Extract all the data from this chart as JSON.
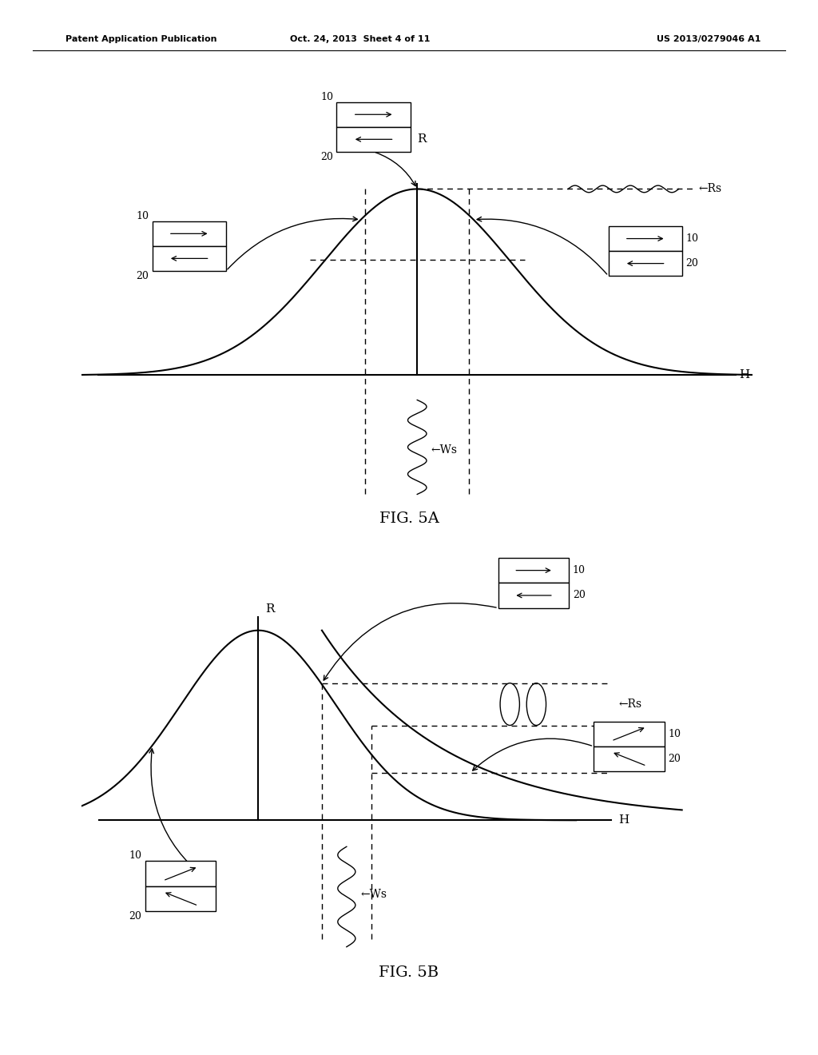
{
  "bg_color": "#ffffff",
  "header_left": "Patent Application Publication",
  "header_mid": "Oct. 24, 2013  Sheet 4 of 11",
  "header_right": "US 2013/0279046 A1",
  "fig5a_label": "FIG. 5A",
  "fig5b_label": "FIG. 5B",
  "label_color": "#000000"
}
